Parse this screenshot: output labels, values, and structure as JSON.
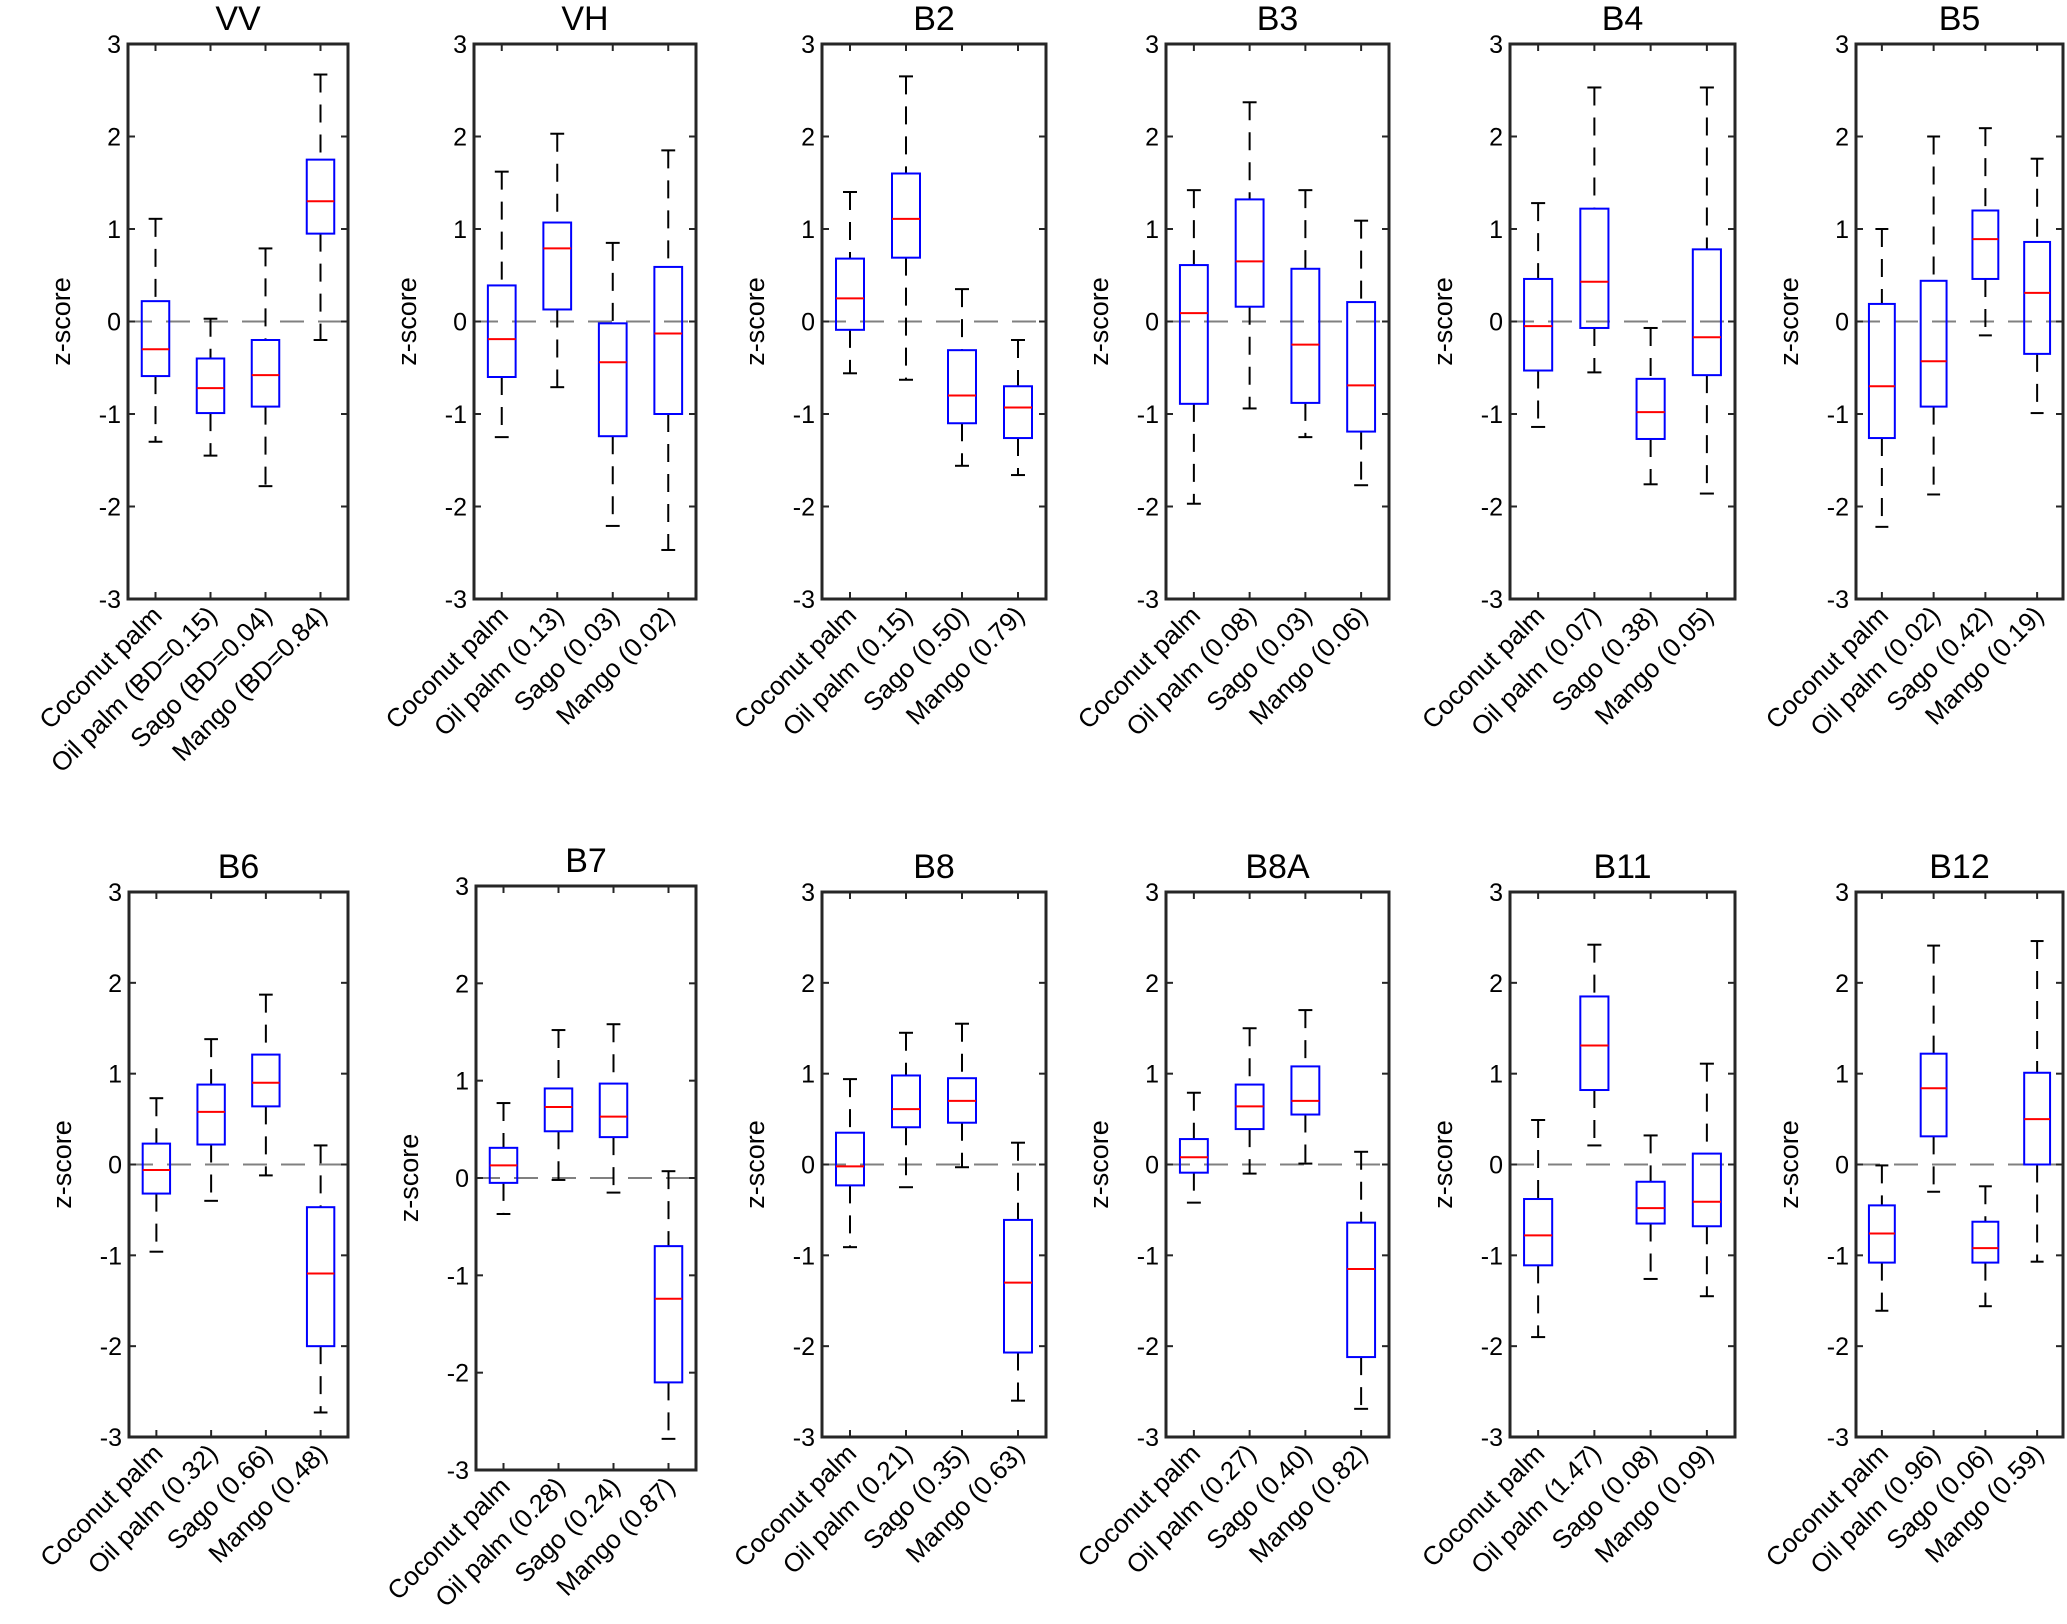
{
  "chart_data": [
    {
      "type": "box",
      "title": "VV",
      "ylabel": "z-score",
      "ylim": [
        -3,
        3
      ],
      "yticks": [
        -3,
        -2,
        -1,
        0,
        1,
        2,
        3
      ],
      "reference_line": 0,
      "categories": [
        "Coconut palm",
        "Oil palm (BD=0.15)",
        "Sago (BD=0.04)",
        "Mango (BD=0.84)"
      ],
      "boxes": [
        {
          "whisker_high": 1.11,
          "q3": 0.22,
          "median": -0.3,
          "q1": -0.59,
          "whisker_low": -1.3
        },
        {
          "whisker_high": 0.03,
          "q3": -0.4,
          "median": -0.72,
          "q1": -0.99,
          "whisker_low": -1.45
        },
        {
          "whisker_high": 0.79,
          "q3": -0.2,
          "median": -0.58,
          "q1": -0.92,
          "whisker_low": -1.78
        },
        {
          "whisker_high": 2.67,
          "q3": 1.75,
          "median": 1.3,
          "q1": 0.95,
          "whisker_low": -0.2
        }
      ]
    },
    {
      "type": "box",
      "title": "VH",
      "ylabel": "z-score",
      "ylim": [
        -3,
        3
      ],
      "yticks": [
        -3,
        -2,
        -1,
        0,
        1,
        2,
        3
      ],
      "reference_line": 0,
      "categories": [
        "Coconut palm",
        "Oil palm (0.13)",
        "Sago (0.03)",
        "Mango (0.02)"
      ],
      "boxes": [
        {
          "whisker_high": 1.62,
          "q3": 0.39,
          "median": -0.19,
          "q1": -0.6,
          "whisker_low": -1.25
        },
        {
          "whisker_high": 2.03,
          "q3": 1.07,
          "median": 0.79,
          "q1": 0.13,
          "whisker_low": -0.71
        },
        {
          "whisker_high": 0.85,
          "q3": -0.02,
          "median": -0.44,
          "q1": -1.24,
          "whisker_low": -2.21
        },
        {
          "whisker_high": 1.85,
          "q3": 0.59,
          "median": -0.13,
          "q1": -1.0,
          "whisker_low": -2.47
        }
      ]
    },
    {
      "type": "box",
      "title": "B2",
      "ylabel": "z-score",
      "ylim": [
        -3,
        3
      ],
      "yticks": [
        -3,
        -2,
        -1,
        0,
        1,
        2,
        3
      ],
      "reference_line": 0,
      "categories": [
        "Coconut palm",
        "Oil palm (0.15)",
        "Sago (0.50)",
        "Mango (0.79)"
      ],
      "boxes": [
        {
          "whisker_high": 1.4,
          "q3": 0.68,
          "median": 0.25,
          "q1": -0.09,
          "whisker_low": -0.56
        },
        {
          "whisker_high": 2.65,
          "q3": 1.6,
          "median": 1.11,
          "q1": 0.69,
          "whisker_low": -0.63
        },
        {
          "whisker_high": 0.35,
          "q3": -0.31,
          "median": -0.8,
          "q1": -1.1,
          "whisker_low": -1.56
        },
        {
          "whisker_high": -0.2,
          "q3": -0.7,
          "median": -0.93,
          "q1": -1.26,
          "whisker_low": -1.66
        }
      ]
    },
    {
      "type": "box",
      "title": "B3",
      "ylabel": "z-score",
      "ylim": [
        -3,
        3
      ],
      "yticks": [
        -3,
        -2,
        -1,
        0,
        1,
        2,
        3
      ],
      "reference_line": 0,
      "categories": [
        "Coconut palm",
        "Oil palm (0.08)",
        "Sago (0.03)",
        "Mango (0.06)"
      ],
      "boxes": [
        {
          "whisker_high": 1.42,
          "q3": 0.61,
          "median": 0.09,
          "q1": -0.89,
          "whisker_low": -1.97
        },
        {
          "whisker_high": 2.37,
          "q3": 1.32,
          "median": 0.65,
          "q1": 0.16,
          "whisker_low": -0.94
        },
        {
          "whisker_high": 1.42,
          "q3": 0.57,
          "median": -0.25,
          "q1": -0.88,
          "whisker_low": -1.25
        },
        {
          "whisker_high": 1.09,
          "q3": 0.21,
          "median": -0.69,
          "q1": -1.19,
          "whisker_low": -1.77
        }
      ]
    },
    {
      "type": "box",
      "title": "B4",
      "ylabel": "z-score",
      "ylim": [
        -3,
        3
      ],
      "yticks": [
        -3,
        -2,
        -1,
        0,
        1,
        2,
        3
      ],
      "reference_line": 0,
      "categories": [
        "Coconut palm",
        "Oil palm (0.07)",
        "Sago (0.38)",
        "Mango (0.05)"
      ],
      "boxes": [
        {
          "whisker_high": 1.28,
          "q3": 0.46,
          "median": -0.05,
          "q1": -0.53,
          "whisker_low": -1.14
        },
        {
          "whisker_high": 2.53,
          "q3": 1.22,
          "median": 0.43,
          "q1": -0.07,
          "whisker_low": -0.55
        },
        {
          "whisker_high": -0.07,
          "q3": -0.62,
          "median": -0.98,
          "q1": -1.27,
          "whisker_low": -1.76
        },
        {
          "whisker_high": 2.53,
          "q3": 0.78,
          "median": -0.17,
          "q1": -0.58,
          "whisker_low": -1.86
        }
      ]
    },
    {
      "type": "box",
      "title": "B5",
      "ylabel": "z-score",
      "ylim": [
        -3,
        3
      ],
      "yticks": [
        -3,
        -2,
        -1,
        0,
        1,
        2,
        3
      ],
      "reference_line": 0,
      "categories": [
        "Coconut palm",
        "Oil palm (0.02)",
        "Sago (0.42)",
        "Mango (0.19)"
      ],
      "boxes": [
        {
          "whisker_high": 1.0,
          "q3": 0.19,
          "median": -0.7,
          "q1": -1.26,
          "whisker_low": -2.22
        },
        {
          "whisker_high": 2.0,
          "q3": 0.44,
          "median": -0.43,
          "q1": -0.92,
          "whisker_low": -1.87
        },
        {
          "whisker_high": 2.09,
          "q3": 1.2,
          "median": 0.89,
          "q1": 0.46,
          "whisker_low": -0.15
        },
        {
          "whisker_high": 1.76,
          "q3": 0.86,
          "median": 0.31,
          "q1": -0.35,
          "whisker_low": -0.99
        }
      ]
    },
    {
      "type": "box",
      "title": "B6",
      "ylabel": "z-score",
      "ylim": [
        -3,
        3
      ],
      "yticks": [
        -3,
        -2,
        -1,
        0,
        1,
        2,
        3
      ],
      "reference_line": 0,
      "categories": [
        "Coconut palm",
        "Oil palm (0.32)",
        "Sago (0.66)",
        "Mango (0.48)"
      ],
      "boxes": [
        {
          "whisker_high": 0.73,
          "q3": 0.23,
          "median": -0.06,
          "q1": -0.32,
          "whisker_low": -0.96
        },
        {
          "whisker_high": 1.38,
          "q3": 0.88,
          "median": 0.58,
          "q1": 0.22,
          "whisker_low": -0.4
        },
        {
          "whisker_high": 1.87,
          "q3": 1.21,
          "median": 0.9,
          "q1": 0.64,
          "whisker_low": -0.12
        },
        {
          "whisker_high": 0.21,
          "q3": -0.47,
          "median": -1.2,
          "q1": -2.0,
          "whisker_low": -2.73
        }
      ]
    },
    {
      "type": "box",
      "title": "B7",
      "ylabel": "z-score",
      "ylim": [
        -3,
        3
      ],
      "yticks": [
        -3,
        -2,
        -1,
        0,
        1,
        2,
        3
      ],
      "reference_line": 0,
      "categories": [
        "Coconut palm",
        "Oil palm (0.28)",
        "Sago (0.24)",
        "Mango (0.87)"
      ],
      "boxes": [
        {
          "whisker_high": 0.77,
          "q3": 0.31,
          "median": 0.13,
          "q1": -0.05,
          "whisker_low": -0.37
        },
        {
          "whisker_high": 1.52,
          "q3": 0.92,
          "median": 0.73,
          "q1": 0.48,
          "whisker_low": -0.02
        },
        {
          "whisker_high": 1.58,
          "q3": 0.97,
          "median": 0.63,
          "q1": 0.42,
          "whisker_low": -0.15
        },
        {
          "whisker_high": 0.07,
          "q3": -0.7,
          "median": -1.24,
          "q1": -2.1,
          "whisker_low": -2.68
        }
      ]
    },
    {
      "type": "box",
      "title": "B8",
      "ylabel": "z-score",
      "ylim": [
        -3,
        3
      ],
      "yticks": [
        -3,
        -2,
        -1,
        0,
        1,
        2,
        3
      ],
      "reference_line": 0,
      "categories": [
        "Coconut palm",
        "Oil palm (0.21)",
        "Sago (0.35)",
        "Mango (0.63)"
      ],
      "boxes": [
        {
          "whisker_high": 0.94,
          "q3": 0.35,
          "median": -0.02,
          "q1": -0.23,
          "whisker_low": -0.91
        },
        {
          "whisker_high": 1.45,
          "q3": 0.98,
          "median": 0.61,
          "q1": 0.41,
          "whisker_low": -0.25
        },
        {
          "whisker_high": 1.55,
          "q3": 0.95,
          "median": 0.7,
          "q1": 0.46,
          "whisker_low": -0.03
        },
        {
          "whisker_high": 0.24,
          "q3": -0.61,
          "median": -1.3,
          "q1": -2.07,
          "whisker_low": -2.6
        }
      ]
    },
    {
      "type": "box",
      "title": "B8A",
      "ylabel": "z-score",
      "ylim": [
        -3,
        3
      ],
      "yticks": [
        -3,
        -2,
        -1,
        0,
        1,
        2,
        3
      ],
      "reference_line": 0,
      "categories": [
        "Coconut palm",
        "Oil palm (0.27)",
        "Sago (0.40)",
        "Mango (0.82)"
      ],
      "boxes": [
        {
          "whisker_high": 0.79,
          "q3": 0.28,
          "median": 0.08,
          "q1": -0.09,
          "whisker_low": -0.42
        },
        {
          "whisker_high": 1.5,
          "q3": 0.88,
          "median": 0.64,
          "q1": 0.39,
          "whisker_low": -0.1
        },
        {
          "whisker_high": 1.7,
          "q3": 1.08,
          "median": 0.7,
          "q1": 0.55,
          "whisker_low": 0.01
        },
        {
          "whisker_high": 0.14,
          "q3": -0.64,
          "median": -1.15,
          "q1": -2.12,
          "whisker_low": -2.69
        }
      ]
    },
    {
      "type": "box",
      "title": "B11",
      "ylabel": "z-score",
      "ylim": [
        -3,
        3
      ],
      "yticks": [
        -3,
        -2,
        -1,
        0,
        1,
        2,
        3
      ],
      "reference_line": 0,
      "categories": [
        "Coconut palm",
        "Oil palm (1.47)",
        "Sago (0.08)",
        "Mango (0.09)"
      ],
      "boxes": [
        {
          "whisker_high": 0.49,
          "q3": -0.38,
          "median": -0.78,
          "q1": -1.11,
          "whisker_low": -1.9
        },
        {
          "whisker_high": 2.42,
          "q3": 1.85,
          "median": 1.31,
          "q1": 0.82,
          "whisker_low": 0.21
        },
        {
          "whisker_high": 0.32,
          "q3": -0.19,
          "median": -0.48,
          "q1": -0.65,
          "whisker_low": -1.26
        },
        {
          "whisker_high": 1.11,
          "q3": 0.12,
          "median": -0.41,
          "q1": -0.68,
          "whisker_low": -1.45
        }
      ]
    },
    {
      "type": "box",
      "title": "B12",
      "ylabel": "z-score",
      "ylim": [
        -3,
        3
      ],
      "yticks": [
        -3,
        -2,
        -1,
        0,
        1,
        2,
        3
      ],
      "reference_line": 0,
      "categories": [
        "Coconut palm",
        "Oil palm (0.96)",
        "Sago (0.06)",
        "Mango (0.59)"
      ],
      "boxes": [
        {
          "whisker_high": -0.01,
          "q3": -0.45,
          "median": -0.76,
          "q1": -1.08,
          "whisker_low": -1.61
        },
        {
          "whisker_high": 2.41,
          "q3": 1.22,
          "median": 0.84,
          "q1": 0.31,
          "whisker_low": -0.3
        },
        {
          "whisker_high": -0.24,
          "q3": -0.63,
          "median": -0.92,
          "q1": -1.08,
          "whisker_low": -1.56
        },
        {
          "whisker_high": 2.46,
          "q3": 1.01,
          "median": 0.5,
          "q1": 0.0,
          "whisker_low": -1.07
        }
      ]
    }
  ],
  "colors": {
    "box": "#0000ff",
    "median": "#ff0000",
    "whisker": "#000000",
    "reference_line": "#808080",
    "axis": "#262626"
  }
}
